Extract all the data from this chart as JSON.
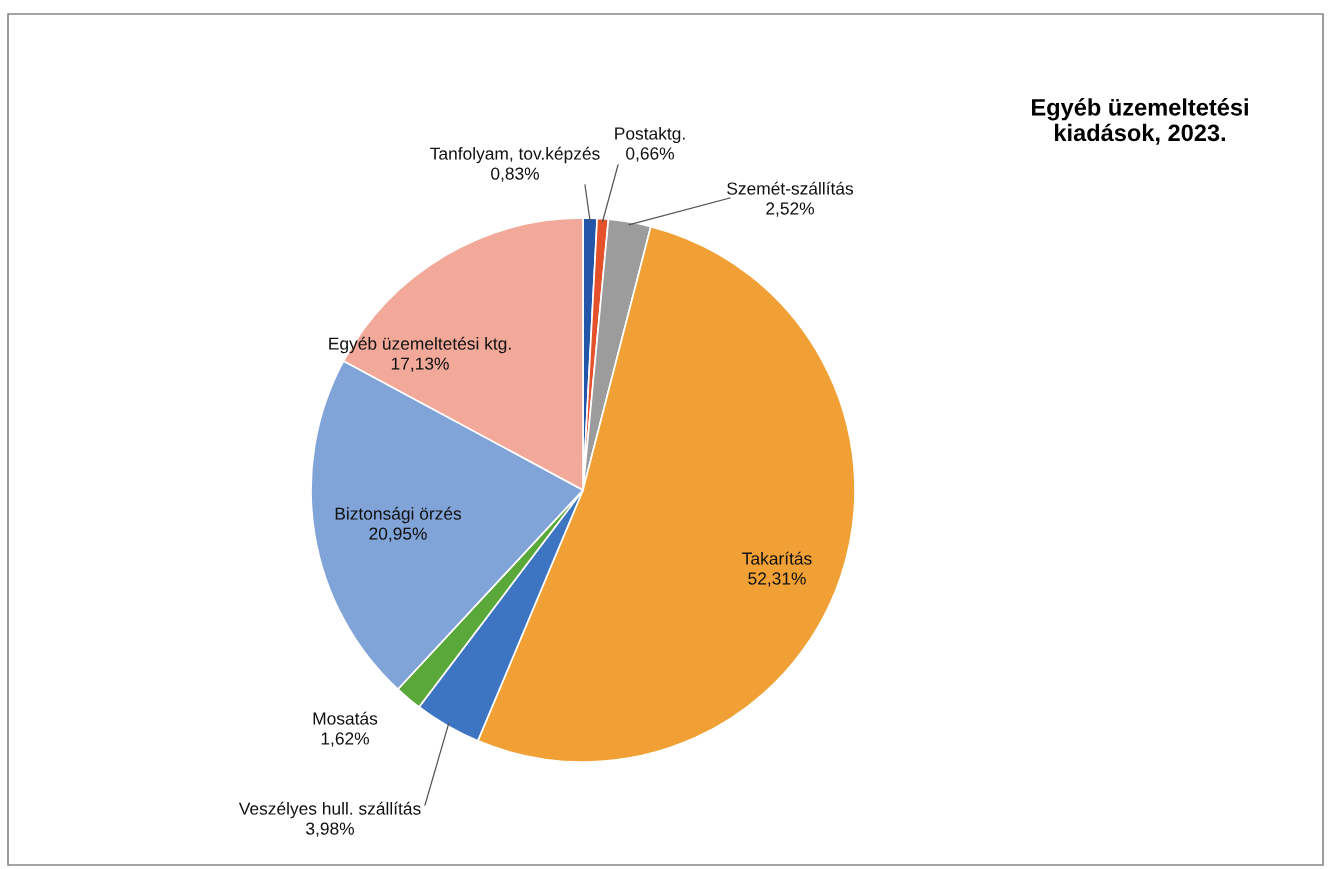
{
  "chart_data": {
    "type": "pie",
    "title": "Egyéb üzemeltetési\nkiadások, 2023.",
    "categories": [
      "Tanfolyam, tov.képzés",
      "Postaktg.",
      "Szemét-szállítás",
      "Takarítás",
      "Veszélyes hull. szállítás",
      "Mosatás",
      "Biztonsági örzés",
      "Egyéb üzemeltetési ktg."
    ],
    "values": [
      0.83,
      0.66,
      2.52,
      52.31,
      3.98,
      1.62,
      20.95,
      17.13
    ],
    "value_labels": [
      "0,83%",
      "0,66%",
      "2,52%",
      "52,31%",
      "3,98%",
      "1,62%",
      "20,95%",
      "17,13%"
    ],
    "colors": [
      "#2356a8",
      "#e4512a",
      "#9c9c9c",
      "#f0a034",
      "#3d75c2",
      "#5aa83a",
      "#80a3d8",
      "#f2a99a"
    ],
    "legend": false
  }
}
